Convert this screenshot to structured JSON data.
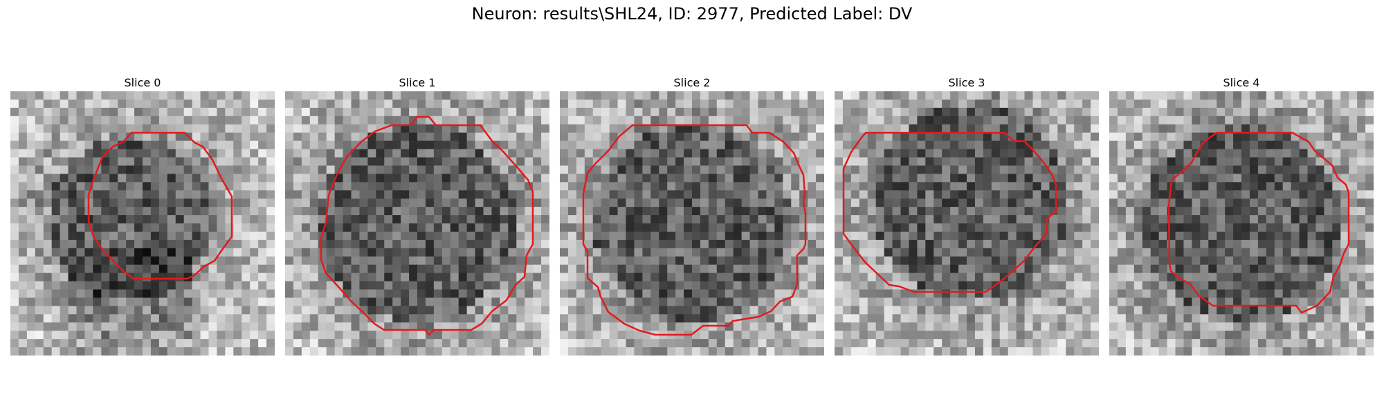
{
  "figure": {
    "title": "Neuron: results\\SHL24, ID: 2977, Predicted Label: DV",
    "contour_color": "#e31a1c"
  },
  "panels": [
    {
      "title": "Slice 0",
      "seed": 11,
      "pattern": "blob"
    },
    {
      "title": "Slice 1",
      "seed": 23,
      "pattern": "disk"
    },
    {
      "title": "Slice 2",
      "seed": 37,
      "pattern": "disk"
    },
    {
      "title": "Slice 3",
      "seed": 41,
      "pattern": "mid"
    },
    {
      "title": "Slice 4",
      "seed": 59,
      "pattern": "disk"
    }
  ]
}
